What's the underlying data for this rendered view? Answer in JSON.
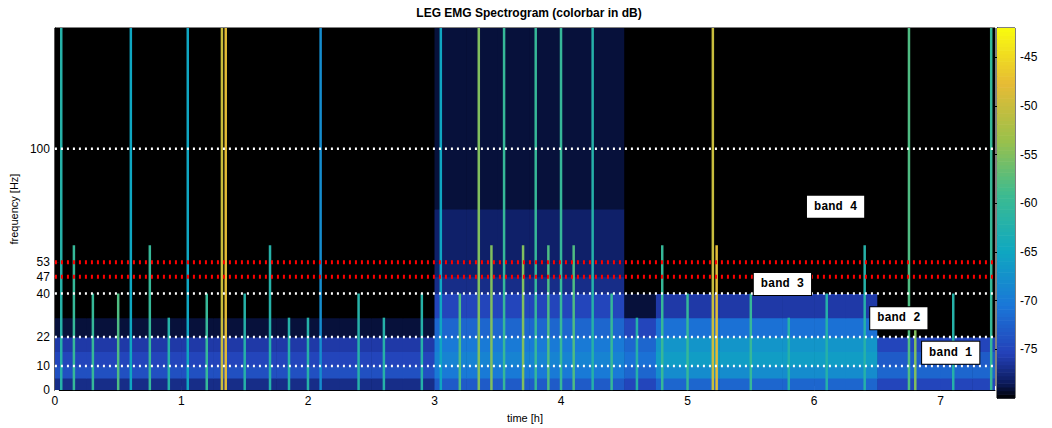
{
  "chart_data": {
    "type": "spectrogram",
    "title": "LEG EMG Spectrogram (colorbar in dB)",
    "x_label": "time [h]",
    "y_label": "frequency [Hz]",
    "xlim": [
      0,
      7.43
    ],
    "xticks": [
      0,
      1,
      2,
      3,
      4,
      5,
      6,
      7
    ],
    "ylim": [
      0,
      150
    ],
    "yticks": [
      0,
      10,
      22,
      40,
      47,
      53,
      100
    ],
    "time_edges": [
      0,
      0.25,
      0.5,
      0.75,
      1,
      1.25,
      1.5,
      1.75,
      2,
      2.25,
      2.5,
      2.75,
      3,
      3.25,
      3.5,
      3.75,
      4,
      4.25,
      4.5,
      4.75,
      5,
      5.25,
      5.5,
      5.75,
      6,
      6.25,
      6.5,
      6.75,
      7,
      7.25,
      7.5
    ],
    "freq_edges": [
      0,
      5,
      10,
      16,
      22,
      30,
      40,
      47,
      53,
      75,
      100,
      150
    ],
    "cells": [
      [
        -77,
        -77,
        -77,
        -77,
        -77,
        -77,
        -77,
        -77,
        -77,
        -77,
        -77,
        -77,
        -73,
        -73,
        -73,
        -73,
        -73,
        -73,
        -75,
        -72,
        -72,
        -72,
        -72,
        -72,
        -72,
        -72,
        -75,
        -75,
        -75,
        -75
      ],
      [
        -74,
        -74,
        -74,
        -74,
        -74,
        -74,
        -74,
        -74,
        -74,
        -74,
        -74,
        -74,
        -70,
        -70,
        -70,
        -70,
        -70,
        -70,
        -72,
        -68,
        -68,
        -68,
        -68,
        -68,
        -68,
        -68,
        -72,
        -72,
        -72,
        -72
      ],
      [
        -75,
        -75,
        -75,
        -75,
        -75,
        -75,
        -75,
        -75,
        -75,
        -75,
        -75,
        -75,
        -69,
        -69,
        -69,
        -69,
        -69,
        -69,
        -71,
        -66,
        -66,
        -66,
        -66,
        -66,
        -66,
        -66,
        -73,
        -73,
        -73,
        -73
      ],
      [
        -76,
        -76,
        -76,
        -76,
        -76,
        -76,
        -76,
        -76,
        -76,
        -76,
        -76,
        -76,
        -70,
        -70,
        -70,
        -70,
        -70,
        -70,
        -72,
        -67,
        -67,
        -67,
        -67,
        -67,
        -67,
        -67,
        -75,
        -75,
        -75,
        -75
      ],
      [
        -79,
        -79,
        -79,
        -79,
        -79,
        -79,
        -79,
        -79,
        -79,
        -79,
        -79,
        -79,
        -72,
        -72,
        -72,
        -72,
        -72,
        -72,
        -75,
        -71,
        -71,
        -71,
        -71,
        -71,
        -71,
        -71,
        -80,
        -80,
        -80,
        -80
      ],
      [
        -82,
        -82,
        -82,
        -82,
        -82,
        -82,
        -82,
        -82,
        -82,
        -82,
        -82,
        -82,
        -75,
        -75,
        -75,
        -75,
        -75,
        -75,
        -79,
        -76,
        -76,
        -76,
        -76,
        -76,
        -76,
        -76,
        -83,
        -83,
        -83,
        -83
      ],
      [
        -85,
        -85,
        -85,
        -85,
        -85,
        -85,
        -85,
        -85,
        -85,
        -85,
        -85,
        -85,
        -77,
        -77,
        -77,
        -77,
        -77,
        -77,
        -82,
        -80,
        -80,
        -80,
        -80,
        -80,
        -80,
        -80,
        -85,
        -85,
        -85,
        -85
      ],
      [
        -85,
        -85,
        -85,
        -85,
        -85,
        -85,
        -85,
        -85,
        -85,
        -85,
        -85,
        -85,
        -78,
        -78,
        -78,
        -78,
        -78,
        -78,
        -83,
        -81,
        -81,
        -81,
        -81,
        -81,
        -81,
        -81,
        -85,
        -85,
        -85,
        -85
      ],
      [
        -86,
        -86,
        -86,
        -86,
        -86,
        -86,
        -86,
        -86,
        -86,
        -86,
        -86,
        -86,
        -78,
        -78,
        -78,
        -78,
        -78,
        -78,
        -85,
        -84,
        -84,
        -84,
        -84,
        -84,
        -84,
        -84,
        -86,
        -86,
        -86,
        -86
      ],
      [
        -86,
        -86,
        -86,
        -86,
        -86,
        -86,
        -86,
        -86,
        -86,
        -86,
        -86,
        -86,
        -79,
        -79,
        -79,
        -79,
        -79,
        -79,
        -86,
        -86,
        -86,
        -86,
        -86,
        -86,
        -86,
        -86,
        -86,
        -86,
        -86,
        -86
      ],
      [
        -86,
        -86,
        -86,
        -86,
        -86,
        -86,
        -86,
        -86,
        -86,
        -86,
        -86,
        -86,
        -79,
        -79,
        -79,
        -79,
        -79,
        -79,
        -86,
        -86,
        -86,
        -86,
        -86,
        -86,
        -86,
        -86,
        -86,
        -86,
        -86,
        -86
      ]
    ],
    "stripes": [
      [
        0.05,
        150,
        -62
      ],
      [
        0.15,
        60,
        -60
      ],
      [
        0.3,
        40,
        -60
      ],
      [
        0.5,
        40,
        -58
      ],
      [
        0.6,
        150,
        -65
      ],
      [
        0.75,
        60,
        -60
      ],
      [
        0.9,
        30,
        -62
      ],
      [
        1.05,
        150,
        -65
      ],
      [
        1.2,
        40,
        -60
      ],
      [
        1.32,
        150,
        -50
      ],
      [
        1.35,
        150,
        -48
      ],
      [
        1.5,
        40,
        -62
      ],
      [
        1.7,
        60,
        -62
      ],
      [
        1.85,
        30,
        -62
      ],
      [
        2.0,
        30,
        -62
      ],
      [
        2.1,
        150,
        -68
      ],
      [
        2.4,
        40,
        -62
      ],
      [
        2.6,
        30,
        -62
      ],
      [
        2.9,
        40,
        -62
      ],
      [
        3.05,
        150,
        -65
      ],
      [
        3.2,
        40,
        -58
      ],
      [
        3.35,
        150,
        -55
      ],
      [
        3.45,
        60,
        -55
      ],
      [
        3.55,
        150,
        -60
      ],
      [
        3.7,
        60,
        -55
      ],
      [
        3.8,
        150,
        -60
      ],
      [
        3.9,
        60,
        -58
      ],
      [
        4.0,
        150,
        -60
      ],
      [
        4.1,
        60,
        -58
      ],
      [
        4.25,
        150,
        -62
      ],
      [
        4.4,
        40,
        -60
      ],
      [
        4.6,
        30,
        -62
      ],
      [
        4.8,
        60,
        -60
      ],
      [
        5.0,
        40,
        -60
      ],
      [
        5.2,
        150,
        -50
      ],
      [
        5.23,
        60,
        -48
      ],
      [
        5.5,
        40,
        -60
      ],
      [
        5.8,
        30,
        -62
      ],
      [
        6.1,
        40,
        -62
      ],
      [
        6.4,
        60,
        -62
      ],
      [
        6.75,
        150,
        -58
      ],
      [
        6.8,
        30,
        -55
      ],
      [
        7.1,
        40,
        -62
      ],
      [
        7.4,
        150,
        -60
      ]
    ],
    "lines": [
      {
        "value": 10,
        "color": "#ffffff"
      },
      {
        "value": 22,
        "color": "#ffffff"
      },
      {
        "value": 40,
        "color": "#ffffff"
      },
      {
        "value": 47,
        "color": "#ff0000"
      },
      {
        "value": 53,
        "color": "#ff0000"
      },
      {
        "value": 100,
        "color": "#ffffff"
      }
    ],
    "annotations": [
      {
        "text": "band 1",
        "x": 7.08,
        "y": 15.5
      },
      {
        "text": "band 2",
        "x": 6.67,
        "y": 29.8
      },
      {
        "text": "band 3",
        "x": 5.75,
        "y": 44
      },
      {
        "text": "band 4",
        "x": 6.17,
        "y": 76
      }
    ],
    "clim": [
      -80,
      -42
    ],
    "cticks": [
      -75,
      -70,
      -65,
      -60,
      -55,
      -50,
      -45
    ]
  }
}
